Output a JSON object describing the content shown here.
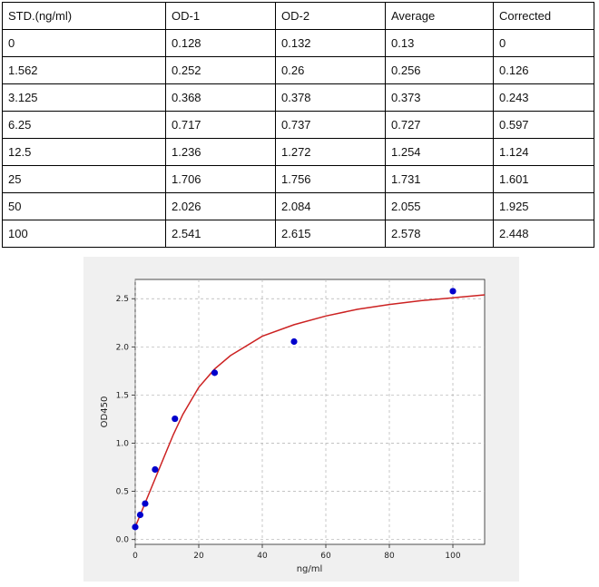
{
  "table": {
    "headers": [
      "STD.(ng/ml)",
      "OD-1",
      "OD-2",
      "Average",
      "Corrected"
    ],
    "rows": [
      [
        "0",
        "0.128",
        "0.132",
        "0.13",
        "0"
      ],
      [
        "1.562",
        "0.252",
        "0.26",
        "0.256",
        "0.126"
      ],
      [
        "3.125",
        "0.368",
        "0.378",
        "0.373",
        "0.243"
      ],
      [
        "6.25",
        "0.717",
        "0.737",
        "0.727",
        "0.597"
      ],
      [
        "12.5",
        "1.236",
        "1.272",
        "1.254",
        "1.124"
      ],
      [
        "25",
        "1.706",
        "1.756",
        "1.731",
        "1.601"
      ],
      [
        "50",
        "2.026",
        "2.084",
        "2.055",
        "1.925"
      ],
      [
        "100",
        "2.541",
        "2.615",
        "2.578",
        "2.448"
      ]
    ]
  },
  "chart_data": {
    "type": "scatter",
    "title": "",
    "xlabel": "ng/ml",
    "ylabel": "OD450",
    "xlim": [
      0,
      110
    ],
    "ylim": [
      -0.05,
      2.7
    ],
    "xticks": [
      0,
      20,
      40,
      60,
      80,
      100
    ],
    "yticks": [
      0.0,
      0.5,
      1.0,
      1.5,
      2.0,
      2.5
    ],
    "grid": true,
    "background": "#f0f0f0",
    "points": {
      "color": "#0000cc",
      "x": [
        0,
        1.562,
        3.125,
        6.25,
        12.5,
        25,
        50,
        100
      ],
      "y": [
        0.13,
        0.256,
        0.373,
        0.727,
        1.254,
        1.731,
        2.055,
        2.578
      ]
    },
    "fit_curve": {
      "color": "#cc2222",
      "x": [
        0,
        1,
        2,
        3,
        4,
        5,
        6,
        8,
        10,
        12,
        15,
        20,
        25,
        30,
        40,
        50,
        60,
        70,
        80,
        90,
        100,
        110
      ],
      "y": [
        0.13,
        0.21,
        0.29,
        0.37,
        0.45,
        0.53,
        0.61,
        0.77,
        0.93,
        1.09,
        1.3,
        1.58,
        1.77,
        1.91,
        2.11,
        2.23,
        2.32,
        2.39,
        2.44,
        2.48,
        2.51,
        2.54
      ]
    }
  }
}
